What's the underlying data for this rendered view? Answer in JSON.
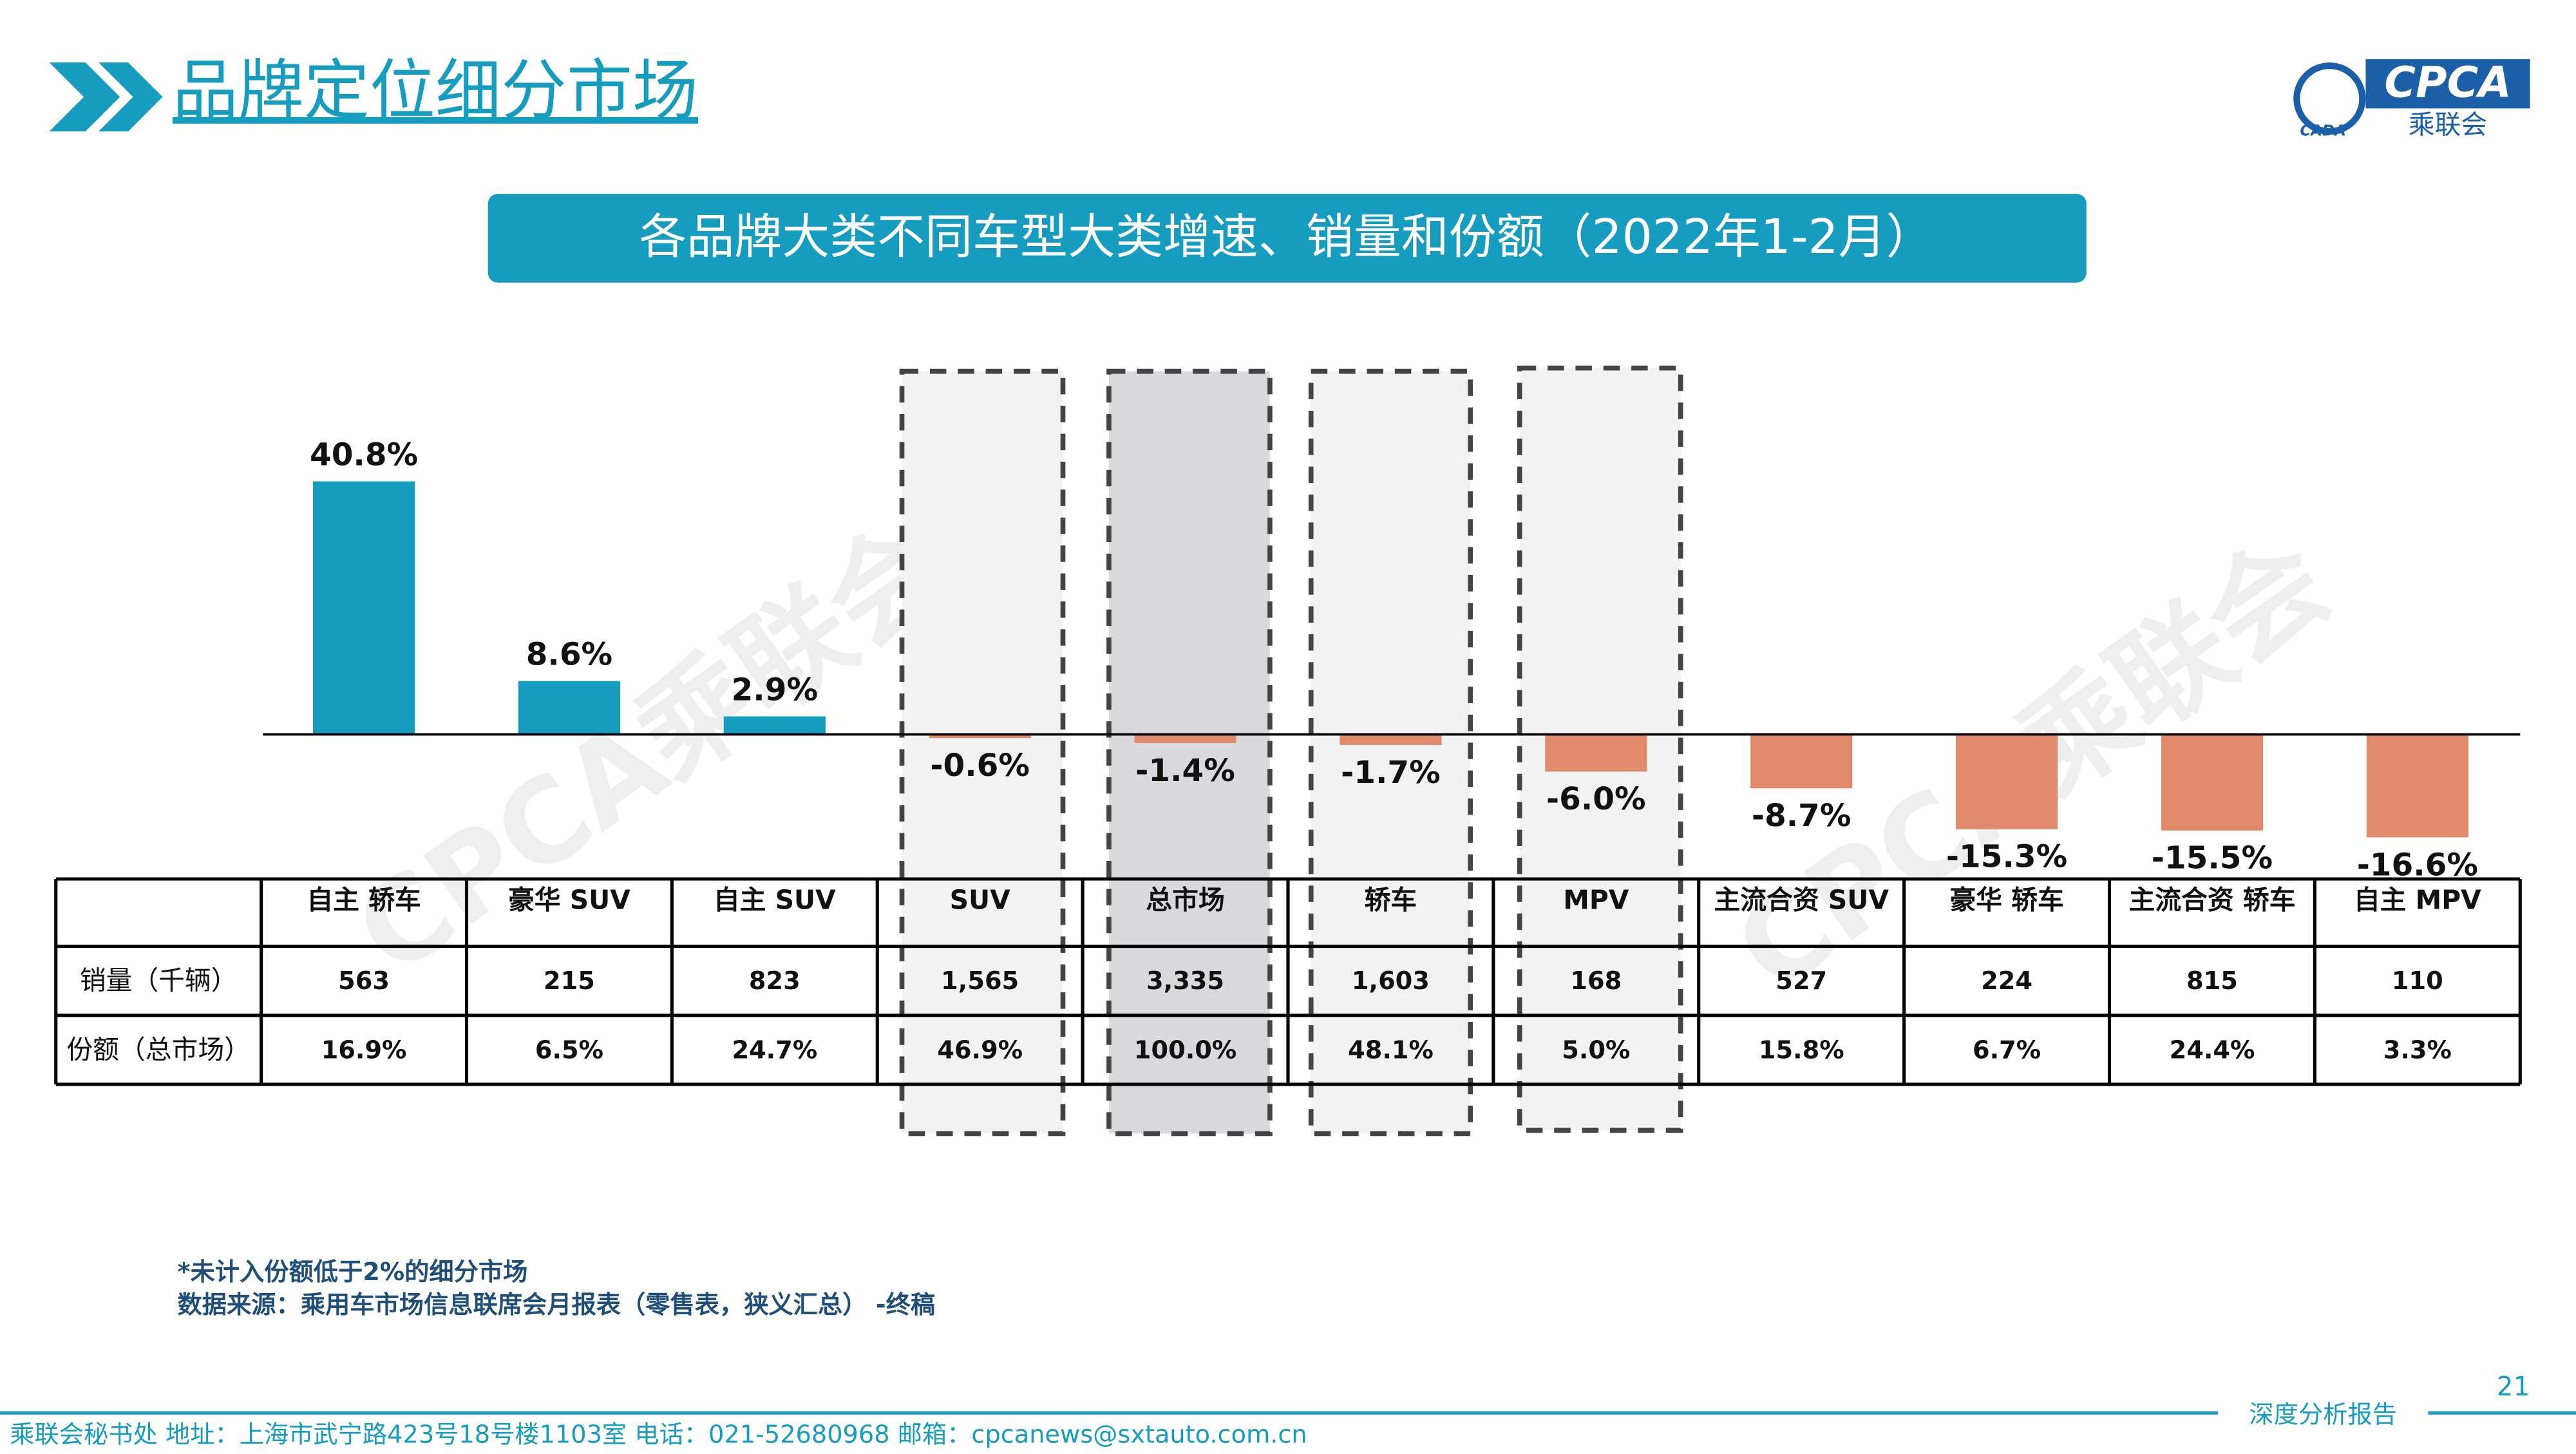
{
  "header": {
    "title": "品牌定位细分市场",
    "logo_text": "CPCA",
    "logo_sub": "乘联会",
    "logo_small": "CADA"
  },
  "chart_data": {
    "type": "bar",
    "title": "各品牌大类不同车型大类增速、销量和份额（2022年1-2月）",
    "categories": [
      "自主 轿车",
      "豪华 SUV",
      "自主 SUV",
      "SUV",
      "总市场",
      "轿车",
      "MPV",
      "主流合资 SUV",
      "豪华 轿车",
      "主流合资 轿车",
      "自主 MPV"
    ],
    "values": [
      40.8,
      8.6,
      2.9,
      -0.6,
      -1.4,
      -1.7,
      -6.0,
      -8.7,
      -15.3,
      -15.5,
      -16.6
    ],
    "value_labels": [
      "40.8%",
      "8.6%",
      "2.9%",
      "-0.6%",
      "-1.4%",
      "-1.7%",
      "-6.0%",
      "-8.7%",
      "-15.3%",
      "-15.5%",
      "-16.6%"
    ],
    "color": "#169cbf",
    "negative_color": "#e08a6b",
    "table": {
      "rows": [
        {
          "label": "销量（千辆）",
          "cells": [
            "563",
            "215",
            "823",
            "1,565",
            "3,335",
            "1,603",
            "168",
            "527",
            "224",
            "815",
            "110"
          ]
        },
        {
          "label": "份额（总市场）",
          "cells": [
            "16.9%",
            "6.5%",
            "24.7%",
            "46.9%",
            "100.0%",
            "48.1%",
            "5.0%",
            "15.8%",
            "6.7%",
            "24.4%",
            "3.3%"
          ]
        }
      ]
    },
    "watermark": "CPCA乘联会"
  },
  "notes": [
    "*未计入份额低于2%的细分市场",
    "数据来源：乘用车市场信息联席会月报表（零售表，狭义汇总） -终稿"
  ],
  "footer": {
    "text": "乘联会秘书处  地址：上海市武宁路423号18号楼1103室  电话：021-52680968  邮箱：cpcanews@sxtauto.com.cn",
    "report": "深度分析报告",
    "page": "21"
  }
}
